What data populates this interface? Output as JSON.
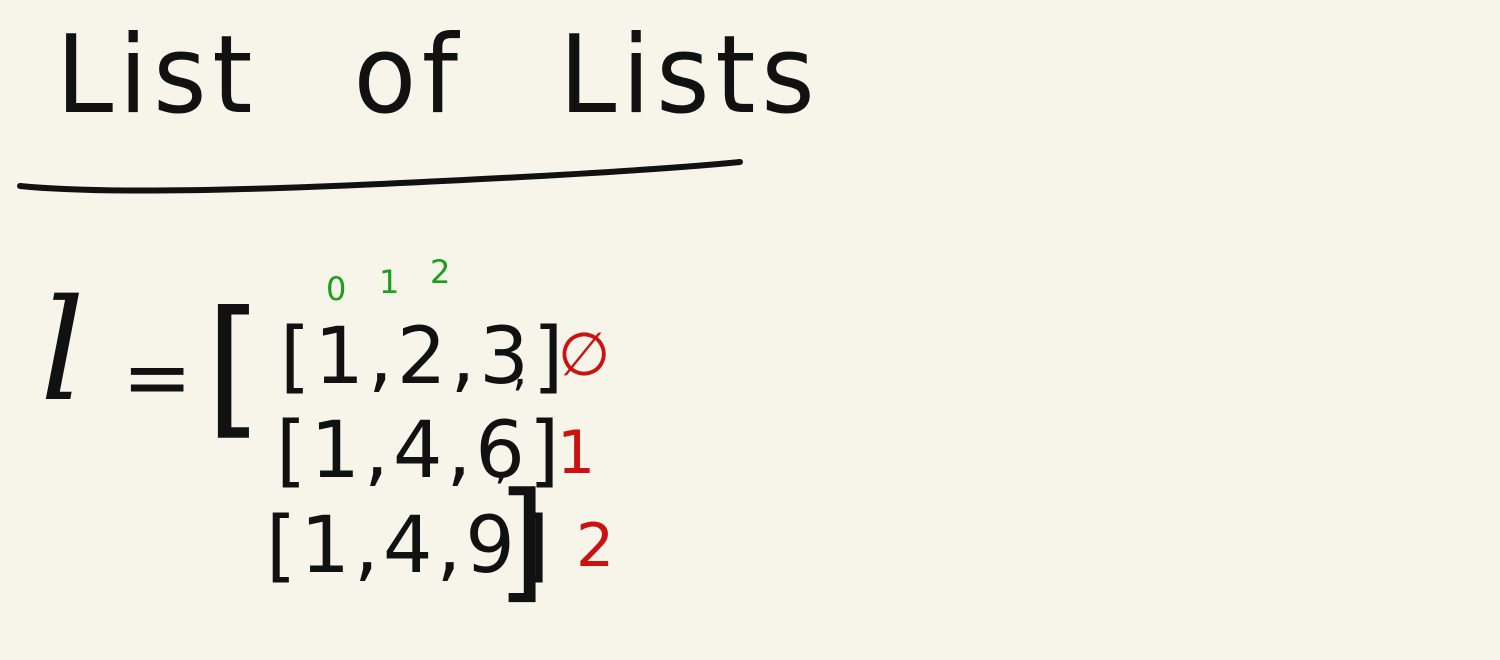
{
  "title": "List of Lists",
  "expression": {
    "variable": "l",
    "equals": "=",
    "open_bracket": "[",
    "close_bracket": "]",
    "separator": ",",
    "rows": [
      "[1,2,3]",
      "[1,4,6]",
      "[1,4,9]"
    ]
  },
  "column_indices": [
    "0",
    "1",
    "2"
  ],
  "row_indices": [
    "∅",
    "1",
    "2"
  ],
  "colors": {
    "background": "#f7f5ea",
    "ink": "#111111",
    "column_index": "#1aa01a",
    "row_index": "#cc1111"
  }
}
